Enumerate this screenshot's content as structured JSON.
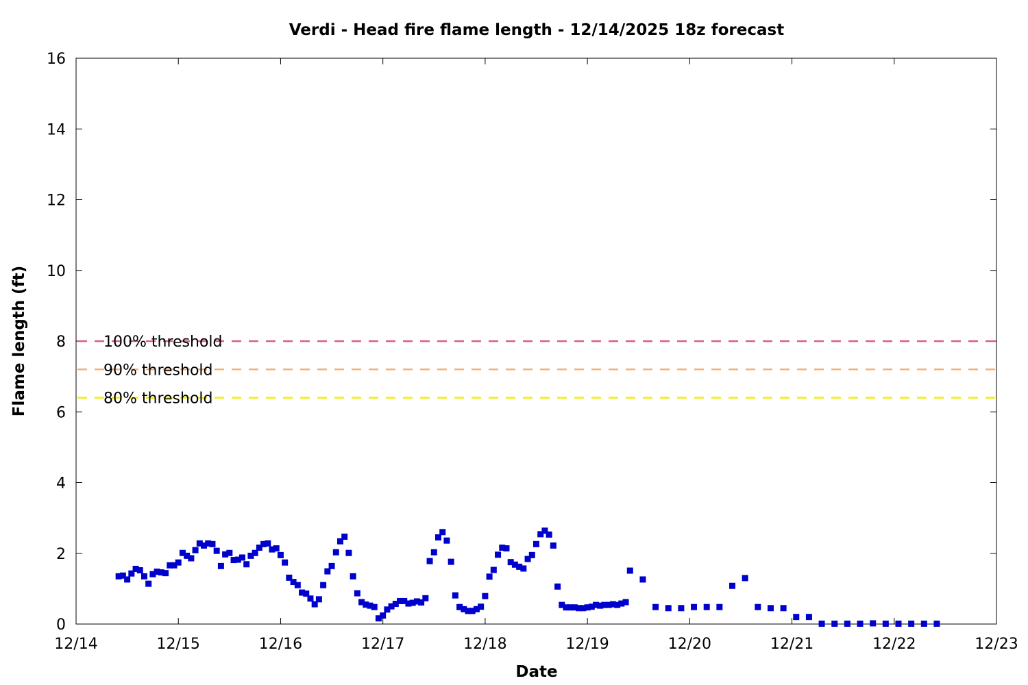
{
  "chart_data": {
    "type": "scatter",
    "title": "Verdi - Head fire flame length - 12/14/2025 18z forecast",
    "xlabel": "Date",
    "ylabel": "Flame length (ft)",
    "x_ticks": [
      "12/14",
      "12/15",
      "12/16",
      "12/17",
      "12/18",
      "12/19",
      "12/20",
      "12/21",
      "12/22",
      "12/23"
    ],
    "y_ticks": [
      "0",
      "2",
      "4",
      "6",
      "8",
      "10",
      "12",
      "14",
      "16"
    ],
    "ylim": [
      0,
      16
    ],
    "xlim": [
      "2025-12-14",
      "2025-12-23"
    ],
    "grid": false,
    "marker_color": "#0000cc",
    "thresholds": [
      {
        "label": "100% threshold",
        "value": 8.0,
        "color": "#e0607a"
      },
      {
        "label": "90% threshold",
        "value": 7.2,
        "color": "#f4b07a"
      },
      {
        "label": "80% threshold",
        "value": 6.4,
        "color": "#f0f000"
      }
    ],
    "points": [
      [
        "12/14 10:00",
        1.35
      ],
      [
        "12/14 11:00",
        1.37
      ],
      [
        "12/14 12:00",
        1.26
      ],
      [
        "12/14 13:00",
        1.43
      ],
      [
        "12/14 14:00",
        1.56
      ],
      [
        "12/14 15:00",
        1.52
      ],
      [
        "12/14 16:00",
        1.35
      ],
      [
        "12/14 17:00",
        1.14
      ],
      [
        "12/14 18:00",
        1.41
      ],
      [
        "12/14 19:00",
        1.48
      ],
      [
        "12/14 20:00",
        1.46
      ],
      [
        "12/14 21:00",
        1.44
      ],
      [
        "12/14 22:00",
        1.66
      ],
      [
        "12/14 23:00",
        1.66
      ],
      [
        "12/15 00:00",
        1.74
      ],
      [
        "12/15 01:00",
        2.01
      ],
      [
        "12/15 02:00",
        1.93
      ],
      [
        "12/15 03:00",
        1.86
      ],
      [
        "12/15 04:00",
        2.09
      ],
      [
        "12/15 05:00",
        2.28
      ],
      [
        "12/15 06:00",
        2.22
      ],
      [
        "12/15 07:00",
        2.28
      ],
      [
        "12/15 08:00",
        2.26
      ],
      [
        "12/15 09:00",
        2.07
      ],
      [
        "12/15 10:00",
        1.64
      ],
      [
        "12/15 11:00",
        1.97
      ],
      [
        "12/15 12:00",
        2.01
      ],
      [
        "12/15 13:00",
        1.81
      ],
      [
        "12/15 14:00",
        1.82
      ],
      [
        "12/15 15:00",
        1.88
      ],
      [
        "12/15 16:00",
        1.69
      ],
      [
        "12/15 17:00",
        1.93
      ],
      [
        "12/15 18:00",
        2.01
      ],
      [
        "12/15 19:00",
        2.16
      ],
      [
        "12/15 20:00",
        2.26
      ],
      [
        "12/15 21:00",
        2.28
      ],
      [
        "12/15 22:00",
        2.11
      ],
      [
        "12/15 23:00",
        2.14
      ],
      [
        "12/16 00:00",
        1.95
      ],
      [
        "12/16 01:00",
        1.74
      ],
      [
        "12/16 02:00",
        1.31
      ],
      [
        "12/16 03:00",
        1.19
      ],
      [
        "12/16 04:00",
        1.1
      ],
      [
        "12/16 05:00",
        0.89
      ],
      [
        "12/16 06:00",
        0.86
      ],
      [
        "12/16 07:00",
        0.72
      ],
      [
        "12/16 08:00",
        0.56
      ],
      [
        "12/16 09:00",
        0.7
      ],
      [
        "12/16 10:00",
        1.1
      ],
      [
        "12/16 11:00",
        1.49
      ],
      [
        "12/16 12:00",
        1.64
      ],
      [
        "12/16 13:00",
        2.03
      ],
      [
        "12/16 14:00",
        2.34
      ],
      [
        "12/16 15:00",
        2.47
      ],
      [
        "12/16 16:00",
        2.01
      ],
      [
        "12/16 17:00",
        1.35
      ],
      [
        "12/16 18:00",
        0.87
      ],
      [
        "12/16 19:00",
        0.62
      ],
      [
        "12/16 20:00",
        0.55
      ],
      [
        "12/16 21:00",
        0.52
      ],
      [
        "12/16 22:00",
        0.48
      ],
      [
        "12/16 23:00",
        0.16
      ],
      [
        "12/17 00:00",
        0.24
      ],
      [
        "12/17 01:00",
        0.41
      ],
      [
        "12/17 02:00",
        0.5
      ],
      [
        "12/17 03:00",
        0.57
      ],
      [
        "12/17 04:00",
        0.65
      ],
      [
        "12/17 05:00",
        0.65
      ],
      [
        "12/17 06:00",
        0.58
      ],
      [
        "12/17 07:00",
        0.6
      ],
      [
        "12/17 08:00",
        0.64
      ],
      [
        "12/17 09:00",
        0.61
      ],
      [
        "12/17 10:00",
        0.73
      ],
      [
        "12/17 11:00",
        1.78
      ],
      [
        "12/17 12:00",
        2.03
      ],
      [
        "12/17 13:00",
        2.45
      ],
      [
        "12/17 14:00",
        2.6
      ],
      [
        "12/17 15:00",
        2.36
      ],
      [
        "12/17 16:00",
        1.76
      ],
      [
        "12/17 17:00",
        0.81
      ],
      [
        "12/17 18:00",
        0.48
      ],
      [
        "12/17 19:00",
        0.42
      ],
      [
        "12/17 20:00",
        0.37
      ],
      [
        "12/17 21:00",
        0.37
      ],
      [
        "12/17 22:00",
        0.42
      ],
      [
        "12/17 23:00",
        0.49
      ],
      [
        "12/18 00:00",
        0.79
      ],
      [
        "12/18 01:00",
        1.34
      ],
      [
        "12/18 02:00",
        1.53
      ],
      [
        "12/18 03:00",
        1.96
      ],
      [
        "12/18 04:00",
        2.16
      ],
      [
        "12/18 05:00",
        2.14
      ],
      [
        "12/18 06:00",
        1.75
      ],
      [
        "12/18 07:00",
        1.68
      ],
      [
        "12/18 08:00",
        1.62
      ],
      [
        "12/18 09:00",
        1.57
      ],
      [
        "12/18 10:00",
        1.84
      ],
      [
        "12/18 11:00",
        1.95
      ],
      [
        "12/18 12:00",
        2.26
      ],
      [
        "12/18 13:00",
        2.54
      ],
      [
        "12/18 14:00",
        2.64
      ],
      [
        "12/18 15:00",
        2.53
      ],
      [
        "12/18 16:00",
        2.22
      ],
      [
        "12/18 17:00",
        1.06
      ],
      [
        "12/18 18:00",
        0.54
      ],
      [
        "12/18 19:00",
        0.47
      ],
      [
        "12/18 20:00",
        0.47
      ],
      [
        "12/18 21:00",
        0.47
      ],
      [
        "12/18 22:00",
        0.45
      ],
      [
        "12/18 23:00",
        0.45
      ],
      [
        "12/19 00:00",
        0.47
      ],
      [
        "12/19 01:00",
        0.49
      ],
      [
        "12/19 02:00",
        0.54
      ],
      [
        "12/19 03:00",
        0.52
      ],
      [
        "12/19 04:00",
        0.54
      ],
      [
        "12/19 05:00",
        0.54
      ],
      [
        "12/19 06:00",
        0.56
      ],
      [
        "12/19 07:00",
        0.54
      ],
      [
        "12/19 08:00",
        0.58
      ],
      [
        "12/19 09:00",
        0.62
      ],
      [
        "12/19 10:00",
        1.51
      ],
      [
        "12/19 13:00",
        1.26
      ],
      [
        "12/19 16:00",
        0.48
      ],
      [
        "12/19 19:00",
        0.45
      ],
      [
        "12/19 22:00",
        0.45
      ],
      [
        "12/20 01:00",
        0.48
      ],
      [
        "12/20 04:00",
        0.48
      ],
      [
        "12/20 07:00",
        0.48
      ],
      [
        "12/20 10:00",
        1.08
      ],
      [
        "12/20 13:00",
        1.3
      ],
      [
        "12/20 16:00",
        0.48
      ],
      [
        "12/20 19:00",
        0.45
      ],
      [
        "12/20 22:00",
        0.45
      ],
      [
        "12/21 01:00",
        0.2
      ],
      [
        "12/21 04:00",
        0.2
      ],
      [
        "12/21 07:00",
        0.01
      ],
      [
        "12/21 10:00",
        0.01
      ],
      [
        "12/21 13:00",
        0.01
      ],
      [
        "12/21 16:00",
        0.01
      ],
      [
        "12/21 19:00",
        0.02
      ],
      [
        "12/21 22:00",
        0.01
      ],
      [
        "12/22 01:00",
        0.01
      ],
      [
        "12/22 04:00",
        0.01
      ],
      [
        "12/22 07:00",
        0.01
      ],
      [
        "12/22 10:00",
        0.01
      ]
    ]
  }
}
